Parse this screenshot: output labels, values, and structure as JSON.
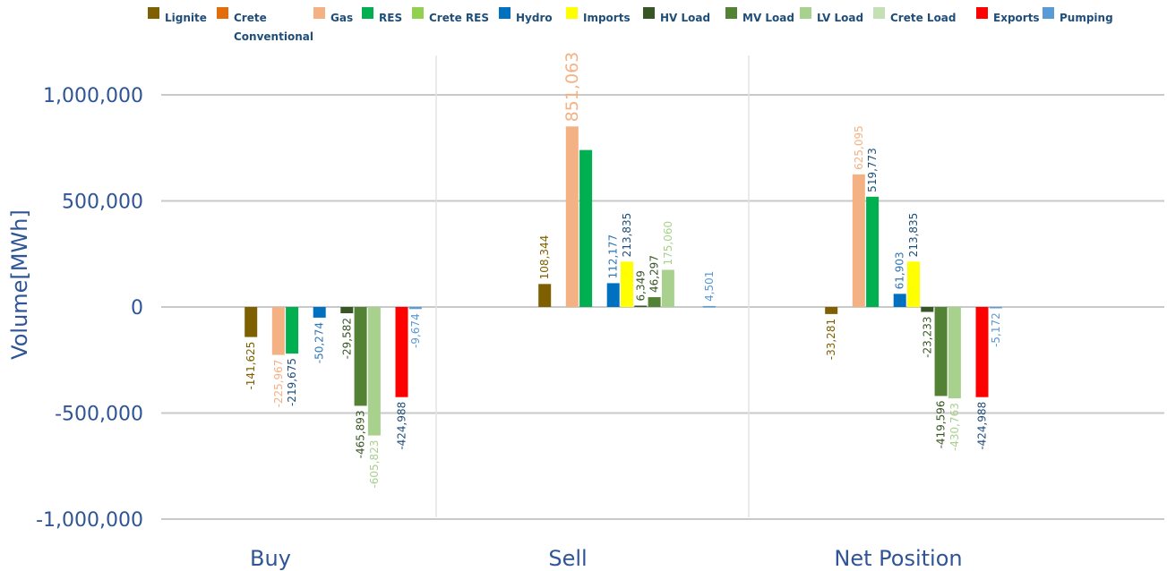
{
  "chart_data": {
    "type": "bar",
    "ylabel": "Volume[MWh]",
    "ylim": [
      -1000000,
      1000000
    ],
    "yticks": [
      1000000,
      500000,
      0,
      -500000,
      -1000000
    ],
    "ytick_labels": [
      "1,000,000",
      "500,000",
      "0",
      "-500,000",
      "-1,000,000"
    ],
    "categories": [
      "Buy",
      "Sell",
      "Net Position"
    ],
    "legend_position": "top",
    "grid": "horizontal",
    "series": [
      {
        "name": "Lignite",
        "color": "#7f6000",
        "label_color": "#7f6000",
        "values": [
          -141625,
          108344,
          -33281
        ],
        "labels": [
          "-141,625",
          "108,344",
          "-33,281"
        ]
      },
      {
        "name": "Crete Conventional",
        "color": "#e46c0a",
        "label_color": "#e46c0a",
        "values": [
          null,
          null,
          null
        ],
        "labels": [
          "",
          "",
          ""
        ]
      },
      {
        "name": "Gas",
        "color": "#f4b183",
        "label_color": "#f4b183",
        "values": [
          -225967,
          851063,
          625095
        ],
        "labels": [
          "-225,967",
          "851,063",
          "625,095"
        ]
      },
      {
        "name": "RES",
        "color": "#00b050",
        "label_color": "#1f4e79",
        "values": [
          -219675,
          740000,
          519773
        ],
        "labels": [
          "-219,675",
          "",
          "519,773"
        ]
      },
      {
        "name": "Crete RES",
        "color": "#92d050",
        "label_color": "#92d050",
        "values": [
          null,
          null,
          null
        ],
        "labels": [
          "",
          "",
          ""
        ]
      },
      {
        "name": "Hydro",
        "color": "#0070c0",
        "label_color": "#2e75b6",
        "values": [
          -50274,
          112177,
          61903
        ],
        "labels": [
          "-50,274",
          "112,177",
          "61,903"
        ]
      },
      {
        "name": "Imports",
        "color": "#ffff00",
        "label_color": "#1f4e79",
        "values": [
          null,
          213835,
          213835
        ],
        "labels": [
          "",
          "213,835",
          "213,835"
        ]
      },
      {
        "name": "HV Load",
        "color": "#375623",
        "label_color": "#375623",
        "values": [
          -29582,
          6349,
          -23233
        ],
        "labels": [
          "-29,582",
          "6,349",
          "-23,233"
        ]
      },
      {
        "name": "MV Load",
        "color": "#548235",
        "label_color": "#375623",
        "values": [
          -465893,
          46297,
          -419596
        ],
        "labels": [
          "-465,893",
          "46,297",
          "-419,596"
        ]
      },
      {
        "name": "LV Load",
        "color": "#a9d18e",
        "label_color": "#a9d18e",
        "values": [
          -605823,
          175060,
          -430763
        ],
        "labels": [
          "-605,823",
          "175,060",
          "-430,763"
        ]
      },
      {
        "name": "Crete Load",
        "color": "#c5e0b4",
        "label_color": "#c5e0b4",
        "values": [
          null,
          null,
          null
        ],
        "labels": [
          "",
          "",
          ""
        ]
      },
      {
        "name": "Exports",
        "color": "#ff0000",
        "label_color": "#1f4e79",
        "values": [
          -424988,
          null,
          -424988
        ],
        "labels": [
          "-424,988",
          "",
          "-424,988"
        ]
      },
      {
        "name": "Pumping",
        "color": "#5b9bd5",
        "label_color": "#5b9bd5",
        "values": [
          -9674,
          4501,
          -5172
        ],
        "labels": [
          "-9,674",
          "4,501",
          "-5,172"
        ]
      }
    ]
  }
}
